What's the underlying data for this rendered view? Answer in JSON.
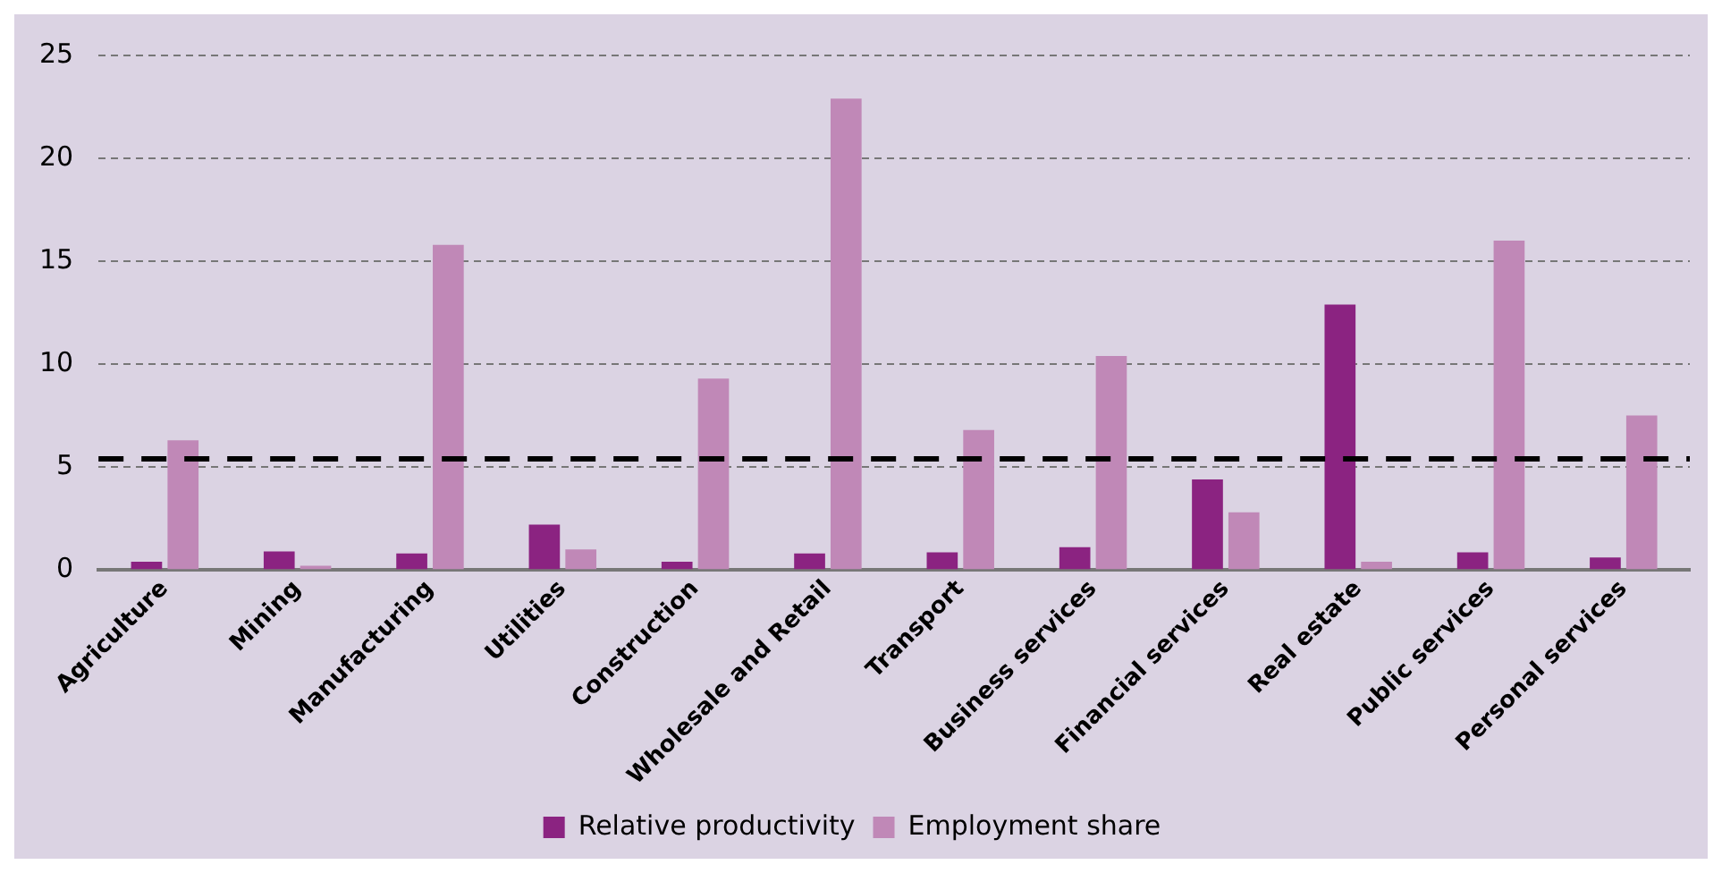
{
  "chart_data": {
    "type": "bar",
    "categories": [
      "Agriculture",
      "Mining",
      "Manufacturing",
      "Utilities",
      "Construction",
      "Wholesale and Retail",
      "Transport",
      "Business services",
      "Financial services",
      "Real estate",
      "Public services",
      "Personal services"
    ],
    "series": [
      {
        "name": "Relative productivity",
        "color": "#8b2381",
        "values": [
          0.4,
          0.9,
          0.8,
          2.2,
          0.4,
          0.8,
          0.85,
          1.1,
          4.4,
          12.9,
          0.85,
          0.6
        ]
      },
      {
        "name": "Employment share",
        "color": "#c088b7",
        "values": [
          6.3,
          0.2,
          15.8,
          1.0,
          9.3,
          22.9,
          6.8,
          10.4,
          2.8,
          0.4,
          16.0,
          7.5
        ]
      }
    ],
    "ylim": [
      0,
      25
    ],
    "yticks": [
      0,
      5,
      10,
      15,
      20,
      25
    ],
    "grid": "y",
    "legend": "bottom",
    "ref_lines": [
      {
        "axis": "y",
        "value": 5.4,
        "color": "#000000",
        "line_style": "dashed"
      }
    ]
  }
}
